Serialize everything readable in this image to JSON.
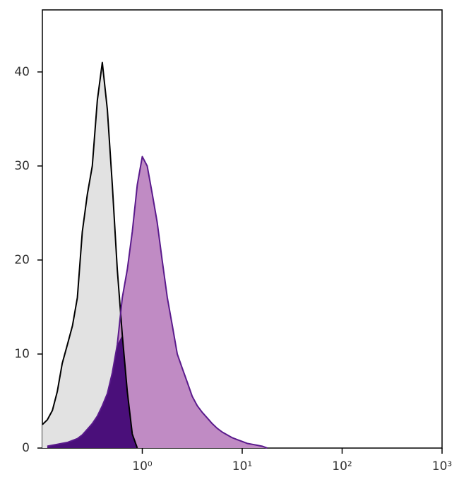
{
  "chart_data": {
    "type": "histogram-overlay",
    "x": [
      0.1,
      0.112,
      0.126,
      0.141,
      0.158,
      0.178,
      0.2,
      0.224,
      0.251,
      0.282,
      0.316,
      0.355,
      0.398,
      0.447,
      0.501,
      0.562,
      0.631,
      0.708,
      0.794,
      0.891,
      1,
      1.12,
      1.26,
      1.41,
      1.58,
      1.78,
      2,
      2.24,
      2.51,
      2.82,
      3.16,
      3.55,
      3.98,
      4.47,
      5.01,
      5.62,
      6.31,
      7.08,
      7.94,
      8.91,
      10,
      11.2,
      12.6,
      14.1,
      15.8,
      17.8
    ],
    "series": [
      {
        "color": "#000000",
        "fill": "#e2e2e2",
        "values": [
          2.5,
          3,
          4,
          6,
          9,
          11,
          13,
          16,
          23,
          27,
          30,
          37,
          41,
          36,
          28,
          19,
          12,
          6,
          1.5,
          0,
          null,
          null,
          null,
          null,
          null,
          null,
          null,
          null,
          null,
          null,
          null,
          null,
          null,
          null,
          null,
          null,
          null,
          null,
          null,
          null,
          null,
          null,
          null,
          null,
          null,
          null
        ]
      },
      {
        "color": "#5a1a8c",
        "fill": "#c08bc4",
        "values": [
          null,
          0.2,
          0.3,
          0.4,
          0.5,
          0.6,
          0.8,
          1,
          1.4,
          2,
          2.6,
          3.4,
          4.5,
          5.8,
          8,
          11,
          16,
          19,
          23,
          28,
          31,
          30,
          27,
          24,
          20,
          16,
          13,
          10,
          8.5,
          7,
          5.5,
          4.5,
          3.8,
          3.2,
          2.6,
          2.1,
          1.7,
          1.4,
          1.1,
          0.9,
          0.7,
          0.5,
          0.4,
          0.3,
          0.2,
          0
        ]
      }
    ],
    "overlap_color": "#4a0f7a",
    "xscale": "log",
    "xlim": [
      0.1,
      1000
    ],
    "xticks": [
      {
        "value": 1,
        "label": "10⁰"
      },
      {
        "value": 10,
        "label": "10¹"
      },
      {
        "value": 100,
        "label": "10²"
      },
      {
        "value": 1000,
        "label": "10³"
      }
    ],
    "ylim": [
      0,
      46.6
    ],
    "yticks": [
      0,
      10,
      20,
      30,
      40
    ]
  }
}
